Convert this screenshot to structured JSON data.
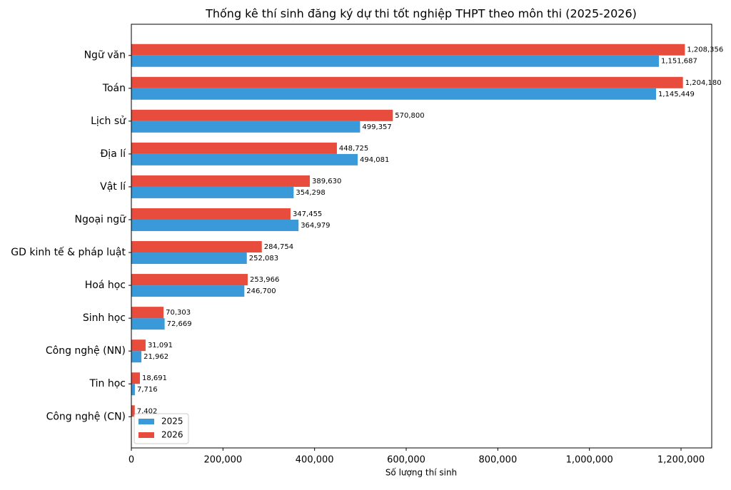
{
  "chart_data": {
    "type": "barh",
    "title": "Thống kê thí sinh đăng ký dự thi tốt nghiệp THPT theo môn thi (2025-2026)",
    "x_label": "Số lượng thí sinh",
    "categories": [
      "Ngữ văn",
      "Toán",
      "Lịch sử",
      "Địa lí",
      "Vật lí",
      "Ngoại ngữ",
      "GD kinh tế & pháp luật",
      "Hoá học",
      "Sinh học",
      "Công nghệ (NN)",
      "Tin học",
      "Công nghệ (CN)"
    ],
    "series": [
      {
        "name": "2025",
        "color": "#3a9ad9",
        "values": [
          1151687,
          1145449,
          499357,
          494081,
          354298,
          364979,
          252083,
          246700,
          72669,
          21962,
          7716,
          0
        ],
        "value_labels": [
          "1,151,687",
          "1,145,449",
          "499,357",
          "494,081",
          "354,298",
          "364,979",
          "252,083",
          "246,700",
          "72,669",
          "21,962",
          "7,716",
          null
        ]
      },
      {
        "name": "2026",
        "color": "#e74c3c",
        "values": [
          1208356,
          1204180,
          570800,
          448725,
          389630,
          347455,
          284754,
          253966,
          70303,
          31091,
          18691,
          7402
        ],
        "value_labels": [
          "1,208,356",
          "1,204,180",
          "570,800",
          "448,725",
          "389,630",
          "347,455",
          "284,754",
          "253,966",
          "70,303",
          "31,091",
          "18,691",
          "7,402"
        ]
      }
    ],
    "xlim": [
      0,
      1267000
    ],
    "xticks": [
      0,
      {
        "value": 200000,
        "label": "200,000"
      },
      {
        "value": 400000,
        "label": "400,000"
      },
      {
        "value": 600000,
        "label": "600,000"
      },
      {
        "value": 800000,
        "label": "800,000"
      },
      {
        "value": 1000000,
        "label": "1,000,000"
      },
      {
        "value": 1200000,
        "label": "1,200,000"
      }
    ],
    "legend": "lower left"
  }
}
